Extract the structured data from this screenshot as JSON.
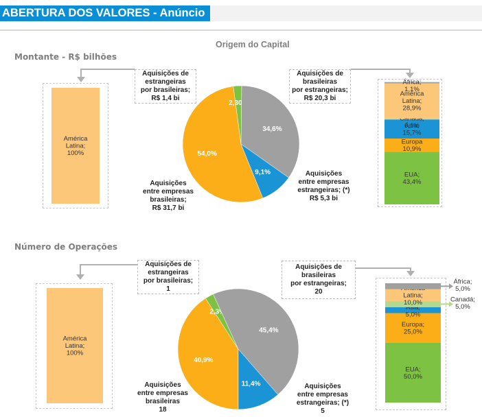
{
  "header": {
    "title": "ABERTURA DOS VALORES - Anúncio"
  },
  "sections": {
    "montante_title": "Montante - R$ bilhões",
    "operacoes_title": "Número de Operações",
    "chart_title": "Origem do Capital"
  },
  "colors": {
    "header_blue": "#0a8fd6",
    "orange": "#fbae17",
    "gray": "#a0a0a0",
    "blue": "#1a94d4",
    "green": "#7dc242",
    "light_orange": "#fdc77a",
    "light_green": "#b3d98e"
  },
  "callouts": {
    "top": {
      "estr_por_bras": [
        "Aquisições  de",
        "estrangeiras",
        "por brasileiras;",
        "R$ 1,4  bi"
      ],
      "bras_por_estr": [
        "Aquisições  de",
        "brasileiras",
        "por  estrangeiras;",
        "R$ 20,3  bi"
      ],
      "entre_bras": [
        "Aquisições",
        "entre empresas",
        "brasileiras;",
        "R$ 31,7  bi"
      ],
      "entre_estr": [
        "Aquisições",
        "entre empresas",
        "estrangeiras;   (*)",
        "R$ 5,3  bi"
      ]
    },
    "bottom": {
      "estr_por_bras": [
        "Aquisições  de",
        "estrangeiras",
        "por brasileiras;",
        "1"
      ],
      "bras_por_estr": [
        "Aquisições  de",
        "brasileiras",
        "por  estrangeiras;",
        "20"
      ],
      "entre_bras": [
        "Aquisições",
        "entre empresas",
        "brasileiras",
        "18"
      ],
      "entre_estr": [
        "Aquisições",
        "entre empresas",
        "estrangeiras;  (*)",
        "5"
      ]
    }
  },
  "chart_data": [
    {
      "type": "pie",
      "title": "Origem do Capital - Montante (R$ bilhões)",
      "slices": [
        {
          "name": "Aquisições entre empresas brasileiras",
          "label": "54,0%",
          "value": 54.0,
          "color": "#fbae17"
        },
        {
          "name": "Aquisições de estrangeiras por brasileiras",
          "label": "2,30%",
          "value": 2.3,
          "color": "#7dc242"
        },
        {
          "name": "Aquisições de brasileiras por estrangeiras",
          "label": "34,6%",
          "value": 34.6,
          "color": "#a0a0a0"
        },
        {
          "name": "Aquisições entre empresas estrangeiras",
          "label": "9,1%",
          "value": 9.1,
          "color": "#1a94d4"
        }
      ]
    },
    {
      "type": "bar",
      "title": "Aquisições de estrangeiras por brasileiras - Montante",
      "stacked": true,
      "segments": [
        {
          "name": "América Latina",
          "label": [
            "América",
            "Latina;",
            "100%"
          ],
          "value": 100,
          "color": "#fdc77a"
        }
      ]
    },
    {
      "type": "bar",
      "title": "Aquisições de brasileiras por estrangeiras - Montante",
      "stacked": true,
      "segments": [
        {
          "name": "EUA",
          "label": [
            "EUA;",
            "43,4%"
          ],
          "value": 43.4,
          "color": "#7dc242"
        },
        {
          "name": "Europa",
          "label": [
            "Europa",
            "10,9%"
          ],
          "value": 10.9,
          "color": "#fbae17"
        },
        {
          "name": "Ásia",
          "label": [
            "Ásia;",
            "15,7%"
          ],
          "value": 15.7,
          "color": "#1a94d4"
        },
        {
          "name": "Canadá",
          "label": [
            "Canadá;",
            "0,1%"
          ],
          "value": 0.1,
          "color": "#b3d98e"
        },
        {
          "name": "América Latina",
          "label": [
            "América",
            "Latina;",
            "28,9%"
          ],
          "value": 28.9,
          "color": "#fdc77a"
        },
        {
          "name": "África",
          "label": [
            "África;",
            "1,1%"
          ],
          "value": 1.1,
          "color": "#a0a0a0"
        }
      ]
    },
    {
      "type": "pie",
      "title": "Origem do Capital - Número de Operações",
      "slices": [
        {
          "name": "Aquisições entre empresas brasileiras",
          "label": "40,9%",
          "value": 40.9,
          "color": "#fbae17"
        },
        {
          "name": "Aquisições de estrangeiras por brasileiras",
          "label": "2,3%",
          "value": 2.3,
          "color": "#7dc242"
        },
        {
          "name": "Aquisições de brasileiras por estrangeiras",
          "label": "45,4%",
          "value": 45.4,
          "color": "#a0a0a0"
        },
        {
          "name": "Aquisições entre empresas estrangeiras",
          "label": "11,4%",
          "value": 11.4,
          "color": "#1a94d4"
        }
      ]
    },
    {
      "type": "bar",
      "title": "Aquisições de estrangeiras por brasileiras - Operações",
      "stacked": true,
      "segments": [
        {
          "name": "América Latina",
          "label": [
            "América",
            "Latina;",
            "100%"
          ],
          "value": 100,
          "color": "#fdc77a"
        }
      ]
    },
    {
      "type": "bar",
      "title": "Aquisições de brasileiras por estrangeiras - Operações",
      "stacked": true,
      "segments": [
        {
          "name": "EUA",
          "label": [
            "EUA;",
            "50,0%"
          ],
          "value": 50.0,
          "color": "#7dc242"
        },
        {
          "name": "Europa",
          "label": [
            "Europa;",
            "25,0%"
          ],
          "value": 25.0,
          "color": "#fbae17"
        },
        {
          "name": "Ásia",
          "label": [
            "Ásia;",
            "5,0%"
          ],
          "value": 5.0,
          "color": "#1a94d4"
        },
        {
          "name": "Canadá",
          "label": [
            "Canadá;",
            "5,0%"
          ],
          "value": 5.0,
          "color": "#b3d98e",
          "outside": true
        },
        {
          "name": "América Latina",
          "label": [
            "América",
            "Latina;",
            "10,0%"
          ],
          "value": 10.0,
          "color": "#fdc77a"
        },
        {
          "name": "África",
          "label": [
            "África;",
            "5,0%"
          ],
          "value": 5.0,
          "color": "#a0a0a0",
          "outside": true
        }
      ]
    }
  ]
}
